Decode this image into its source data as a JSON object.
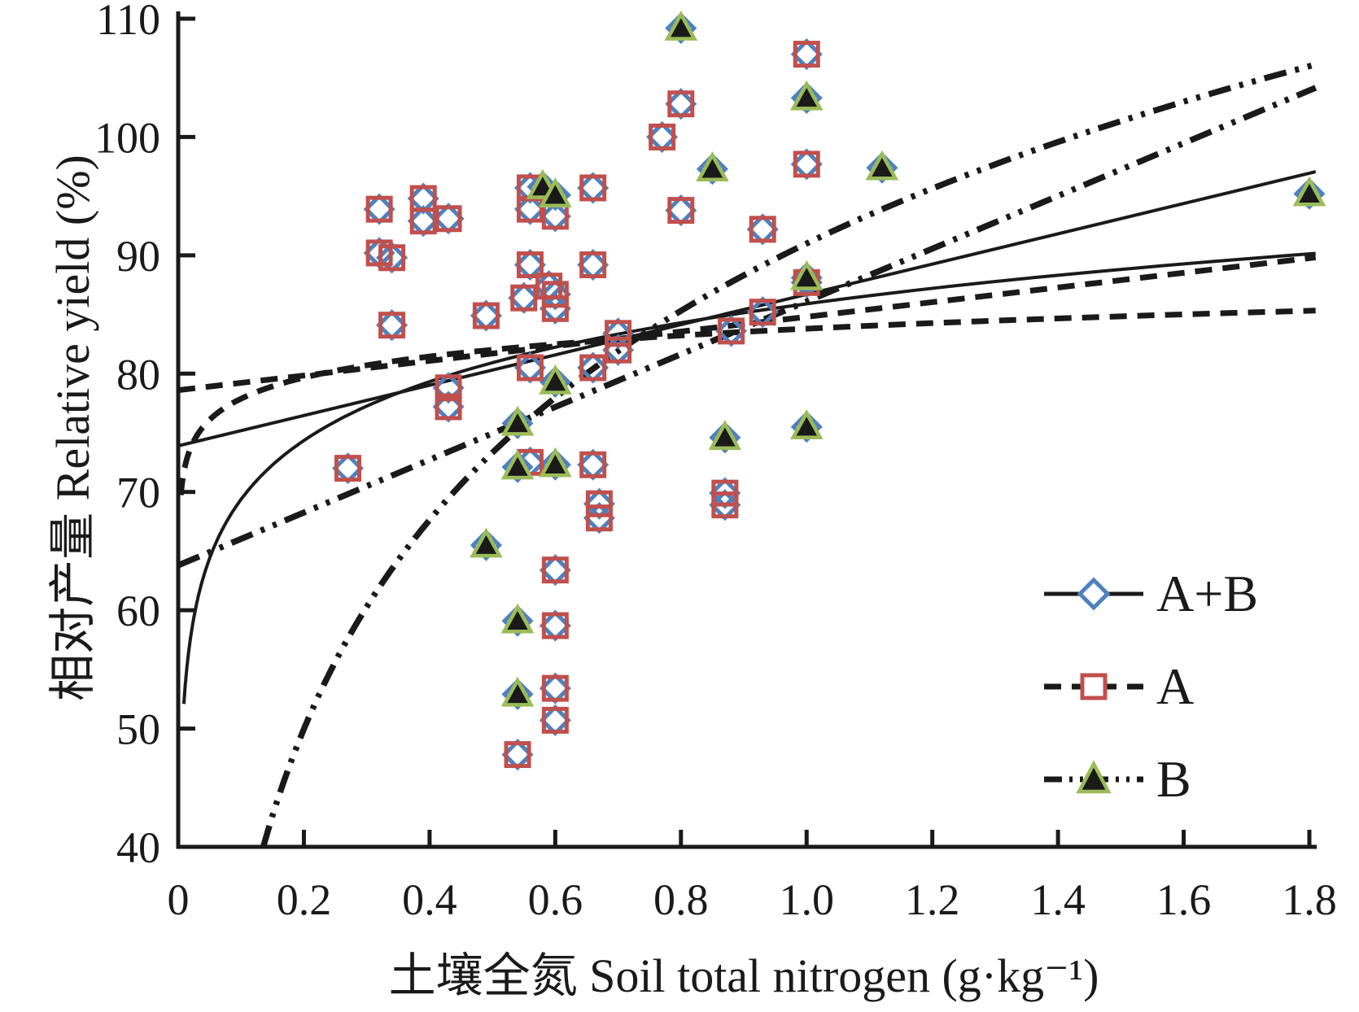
{
  "page": {
    "background": "#ffffff"
  },
  "legend": {
    "items": [
      {
        "label": "A+B",
        "marker": "diamond",
        "line_style": "solid",
        "marker_color": "#4F81BD"
      },
      {
        "label": "A",
        "marker": "square",
        "line_style": "dashed",
        "marker_color": "#C0504D"
      },
      {
        "label": "B",
        "marker": "triangle",
        "line_style": "dash-dot-dot",
        "marker_color": "#9BBB59",
        "marker_fill": "#1a1a1a"
      }
    ]
  },
  "chart_data": {
    "type": "scatter",
    "title": "",
    "xlabel": "土壤全氮 Soil total nitrogen (g·kg⁻¹)",
    "ylabel": "相对产量 Relative yield (%)",
    "xlim": [
      0,
      1.8
    ],
    "ylim": [
      40,
      110
    ],
    "grid": false,
    "legend_position": "lower right",
    "axis_color": "#1a1a1a",
    "xticks": [
      {
        "v": 0,
        "label": "0"
      },
      {
        "v": 0.2,
        "label": "0.2"
      },
      {
        "v": 0.4,
        "label": "0.4"
      },
      {
        "v": 0.6,
        "label": "0.6"
      },
      {
        "v": 0.8,
        "label": "0.8"
      },
      {
        "v": 1.0,
        "label": "1.0"
      },
      {
        "v": 1.2,
        "label": "1.2"
      },
      {
        "v": 1.4,
        "label": "1.4"
      },
      {
        "v": 1.6,
        "label": "1.6"
      },
      {
        "v": 1.8,
        "label": "1.8"
      }
    ],
    "yticks": [
      {
        "v": 40,
        "label": "40"
      },
      {
        "v": 50,
        "label": "50"
      },
      {
        "v": 60,
        "label": "60"
      },
      {
        "v": 70,
        "label": "70"
      },
      {
        "v": 80,
        "label": "80"
      },
      {
        "v": 90,
        "label": "90"
      },
      {
        "v": 100,
        "label": "100"
      },
      {
        "v": 110,
        "label": "110"
      }
    ],
    "series": [
      {
        "name": "A+B",
        "marker": "diamond",
        "color": "#4F81BD",
        "fill": "none",
        "points": [
          [
            0.32,
            93.9
          ],
          [
            0.39,
            94.8
          ],
          [
            0.39,
            92.9
          ],
          [
            0.43,
            93.1
          ],
          [
            0.56,
            95.7
          ],
          [
            0.56,
            93.9
          ],
          [
            0.6,
            93.3
          ],
          [
            0.66,
            95.7
          ],
          [
            0.32,
            90.2
          ],
          [
            0.34,
            89.8
          ],
          [
            0.56,
            89.2
          ],
          [
            0.66,
            89.2
          ],
          [
            0.55,
            86.4
          ],
          [
            0.59,
            87.4
          ],
          [
            0.6,
            86.7
          ],
          [
            0.6,
            85.5
          ],
          [
            0.49,
            84.9
          ],
          [
            0.34,
            84.1
          ],
          [
            0.43,
            78.8
          ],
          [
            0.43,
            77.2
          ],
          [
            0.56,
            80.5
          ],
          [
            0.66,
            80.5
          ],
          [
            0.7,
            83.4
          ],
          [
            0.7,
            82.0
          ],
          [
            0.88,
            83.6
          ],
          [
            0.93,
            85.2
          ],
          [
            0.93,
            92.2
          ],
          [
            1.0,
            107.0
          ],
          [
            0.8,
            102.8
          ],
          [
            0.77,
            100.0
          ],
          [
            1.0,
            97.7
          ],
          [
            0.8,
            93.8
          ],
          [
            1.0,
            87.7
          ],
          [
            0.27,
            72.0
          ],
          [
            0.56,
            72.5
          ],
          [
            0.66,
            72.3
          ],
          [
            0.67,
            69.0
          ],
          [
            0.67,
            67.8
          ],
          [
            0.87,
            69.9
          ],
          [
            0.87,
            68.9
          ],
          [
            0.6,
            63.4
          ],
          [
            0.6,
            58.7
          ],
          [
            0.6,
            53.4
          ],
          [
            0.6,
            50.7
          ],
          [
            0.54,
            47.8
          ],
          [
            0.8,
            109.2
          ],
          [
            1.0,
            103.3
          ],
          [
            1.12,
            97.4
          ],
          [
            0.85,
            97.3
          ],
          [
            0.58,
            95.8
          ],
          [
            0.6,
            95.1
          ],
          [
            1.0,
            88.1
          ],
          [
            0.6,
            79.3
          ],
          [
            0.54,
            75.8
          ],
          [
            1.0,
            75.5
          ],
          [
            0.87,
            74.6
          ],
          [
            0.54,
            72.1
          ],
          [
            0.6,
            72.3
          ],
          [
            0.49,
            65.5
          ],
          [
            0.54,
            59.1
          ],
          [
            0.54,
            52.9
          ],
          [
            1.8,
            95.2
          ]
        ]
      },
      {
        "name": "A",
        "marker": "square",
        "color": "#C0504D",
        "fill": "none",
        "points": [
          [
            0.32,
            93.9
          ],
          [
            0.39,
            94.8
          ],
          [
            0.39,
            92.9
          ],
          [
            0.43,
            93.1
          ],
          [
            0.56,
            95.7
          ],
          [
            0.56,
            93.9
          ],
          [
            0.6,
            93.3
          ],
          [
            0.66,
            95.7
          ],
          [
            0.32,
            90.2
          ],
          [
            0.34,
            89.8
          ],
          [
            0.56,
            89.2
          ],
          [
            0.66,
            89.2
          ],
          [
            0.55,
            86.4
          ],
          [
            0.59,
            87.4
          ],
          [
            0.6,
            86.7
          ],
          [
            0.6,
            85.5
          ],
          [
            0.49,
            84.9
          ],
          [
            0.34,
            84.1
          ],
          [
            0.43,
            78.8
          ],
          [
            0.43,
            77.2
          ],
          [
            0.56,
            80.5
          ],
          [
            0.66,
            80.5
          ],
          [
            0.7,
            83.4
          ],
          [
            0.7,
            82.0
          ],
          [
            0.88,
            83.6
          ],
          [
            0.93,
            85.2
          ],
          [
            0.93,
            92.2
          ],
          [
            1.0,
            107.0
          ],
          [
            0.8,
            102.8
          ],
          [
            0.77,
            100.0
          ],
          [
            1.0,
            97.7
          ],
          [
            0.8,
            93.8
          ],
          [
            1.0,
            87.7
          ],
          [
            0.27,
            72.0
          ],
          [
            0.56,
            72.5
          ],
          [
            0.66,
            72.3
          ],
          [
            0.67,
            69.0
          ],
          [
            0.67,
            67.8
          ],
          [
            0.87,
            69.9
          ],
          [
            0.87,
            68.9
          ],
          [
            0.6,
            63.4
          ],
          [
            0.6,
            58.7
          ],
          [
            0.6,
            53.4
          ],
          [
            0.6,
            50.7
          ],
          [
            0.54,
            47.8
          ]
        ]
      },
      {
        "name": "B",
        "marker": "triangle",
        "color": "#9BBB59",
        "fill": "#1a1a1a",
        "points": [
          [
            0.8,
            109.2
          ],
          [
            1.0,
            103.3
          ],
          [
            1.12,
            97.4
          ],
          [
            0.85,
            97.3
          ],
          [
            0.58,
            95.8
          ],
          [
            0.6,
            95.1
          ],
          [
            1.0,
            88.1
          ],
          [
            0.6,
            79.3
          ],
          [
            0.54,
            75.8
          ],
          [
            1.0,
            75.5
          ],
          [
            0.87,
            74.6
          ],
          [
            0.54,
            72.1
          ],
          [
            0.6,
            72.3
          ],
          [
            0.49,
            65.5
          ],
          [
            0.54,
            59.1
          ],
          [
            0.54,
            52.9
          ],
          [
            1.8,
            95.2
          ]
        ]
      }
    ],
    "fit_curves": [
      {
        "series": "A+B",
        "form": "linear",
        "intercept": 73.9,
        "slope": 12.8,
        "x_range": [
          0,
          1.81
        ],
        "style": "solid"
      },
      {
        "series": "A+B",
        "form": "log",
        "a": 85.9,
        "b": 7.18,
        "x_range": [
          0.009,
          1.81
        ],
        "style": "solid"
      },
      {
        "series": "A",
        "form": "linear",
        "intercept": 78.6,
        "slope": 6.2,
        "x_range": [
          0,
          1.81
        ],
        "style": "dashed"
      },
      {
        "series": "A",
        "form": "log",
        "a": 83.8,
        "b": 2.57,
        "x_range": [
          0.0042,
          1.81
        ],
        "style": "dashed"
      },
      {
        "series": "B",
        "form": "linear",
        "intercept": 63.8,
        "slope": 22.3,
        "x_range": [
          0,
          1.81
        ],
        "style": "dashdotdot"
      },
      {
        "series": "B",
        "form": "log",
        "a": 91.0,
        "b": 25.5,
        "x_range": [
          0.135,
          1.81
        ],
        "style": "dashdotdot"
      }
    ]
  }
}
